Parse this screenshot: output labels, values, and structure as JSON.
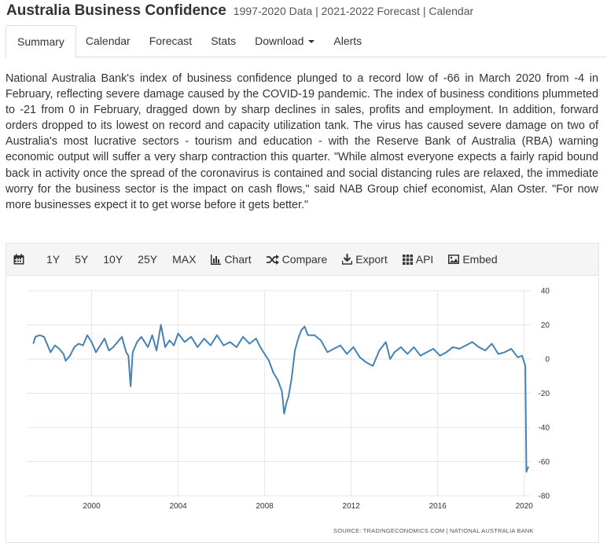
{
  "header": {
    "title": "Australia Business Confidence",
    "subtitle": "1997-2020 Data | 2021-2022 Forecast | Calendar"
  },
  "tabs": [
    {
      "label": "Summary",
      "active": true
    },
    {
      "label": "Calendar"
    },
    {
      "label": "Forecast"
    },
    {
      "label": "Stats"
    },
    {
      "label": "Download"
    },
    {
      "label": "Alerts"
    }
  ],
  "description": "National Australia Bank's index of business confidence plunged to a record low of -66 in March 2020 from -4 in February, reflecting severe damage caused by the COVID-19 pandemic. The index of business conditions plummeted to -21 from 0 in February, dragged down by sharp declines in sales, profits and employment. In addition, forward orders dropped to its lowest on record and capacity utilization tank. The virus has caused severe damage on two of Australia's most lucrative sectors - tourism and education - with the Reserve Bank of Australia (RBA) warning economic output will suffer a very sharp contraction this quarter. \"While almost everyone expects a fairly rapid bound back in activity once the spread of the coronavirus is contained and social distancing rules are relaxed, the immediate worry for the business sector is the impact on cash flows,\" said NAB Group chief economist, Alan Oster. \"For now more businesses expect it to get worse before it gets better.\"",
  "toolbar": {
    "ranges": [
      "1Y",
      "5Y",
      "10Y",
      "25Y",
      "MAX"
    ],
    "chart": "Chart",
    "compare": "Compare",
    "export": "Export",
    "api": "API",
    "embed": "Embed"
  },
  "colors": {
    "line": "#4682b4",
    "grid": "#e6e6e6"
  },
  "chart_data": {
    "type": "line",
    "title": "Australia Business Confidence",
    "x_range": [
      1997.0,
      2020.3
    ],
    "ylim": [
      -80,
      40
    ],
    "y_ticks": [
      40,
      20,
      0,
      -20,
      -40,
      -60,
      -80
    ],
    "x_ticks": [
      2000,
      2004,
      2008,
      2012,
      2016,
      2020
    ],
    "source": "SOURCE: TRADINGECONOMICS.COM  |  NATIONAL AUSTRALIA BANK",
    "series": [
      {
        "name": "Business Confidence",
        "x": [
          1997.3,
          1997.4,
          1997.6,
          1997.8,
          1997.9,
          1998.1,
          1998.3,
          1998.5,
          1998.7,
          1998.8,
          1999.0,
          1999.2,
          1999.4,
          1999.6,
          1999.8,
          2000.0,
          2000.2,
          2000.4,
          2000.6,
          2000.8,
          2001.0,
          2001.2,
          2001.4,
          2001.6,
          2001.7,
          2001.8,
          2001.9,
          2002.1,
          2002.3,
          2002.6,
          2002.8,
          2003.0,
          2003.2,
          2003.4,
          2003.6,
          2003.8,
          2004.0,
          2004.3,
          2004.6,
          2004.9,
          2005.2,
          2005.5,
          2005.8,
          2006.1,
          2006.4,
          2006.7,
          2007.0,
          2007.3,
          2007.6,
          2007.8,
          2008.0,
          2008.2,
          2008.4,
          2008.6,
          2008.8,
          2008.9,
          2009.0,
          2009.1,
          2009.25,
          2009.4,
          2009.55,
          2009.7,
          2009.85,
          2010.0,
          2010.3,
          2010.6,
          2010.9,
          2011.2,
          2011.5,
          2011.8,
          2012.1,
          2012.4,
          2012.7,
          2013.0,
          2013.3,
          2013.6,
          2013.8,
          2014.0,
          2014.3,
          2014.6,
          2014.9,
          2015.2,
          2015.5,
          2015.8,
          2016.1,
          2016.4,
          2016.7,
          2017.0,
          2017.3,
          2017.6,
          2017.9,
          2018.2,
          2018.5,
          2018.8,
          2019.1,
          2019.4,
          2019.7,
          2019.9,
          2020.05,
          2020.1,
          2020.15,
          2020.2
        ],
        "values": [
          9,
          13,
          14,
          13,
          10,
          4,
          8,
          6,
          3,
          -1,
          2,
          7,
          9,
          8,
          14,
          10,
          4,
          8,
          12,
          5,
          7,
          10,
          13,
          4,
          2,
          -16,
          4,
          10,
          13,
          7,
          14,
          5,
          20,
          7,
          11,
          8,
          15,
          10,
          13,
          7,
          12,
          8,
          14,
          8,
          10,
          7,
          13,
          9,
          12,
          7,
          3,
          -1,
          -8,
          -12,
          -19,
          -32,
          -26,
          -22,
          -11,
          5,
          12,
          17,
          19,
          14,
          14,
          11,
          4,
          6,
          8,
          3,
          7,
          1,
          -2,
          -4,
          5,
          10,
          0,
          4,
          7,
          3,
          7,
          2,
          4,
          6,
          2,
          4,
          7,
          6,
          8,
          10,
          7,
          5,
          9,
          3,
          4,
          6,
          1,
          2,
          -4,
          -66,
          -64,
          -63
        ]
      }
    ]
  }
}
